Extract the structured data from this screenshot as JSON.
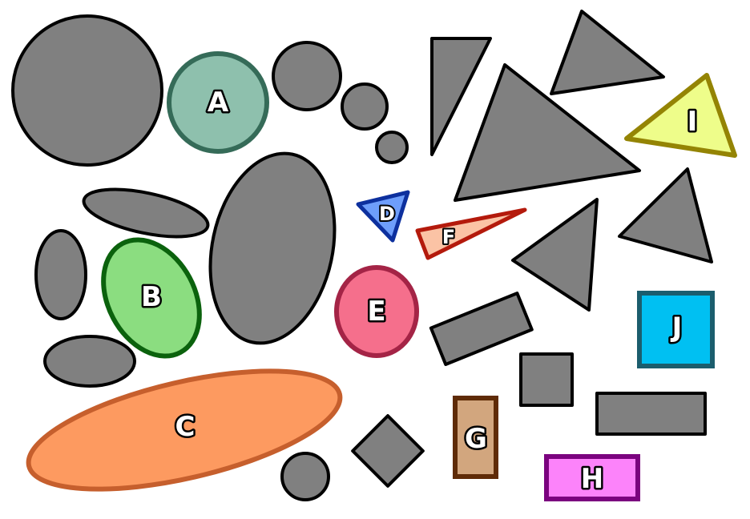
{
  "shape_labels": {
    "A": "A",
    "B": "B",
    "C": "C",
    "D": "D",
    "E": "E",
    "F": "F",
    "G": "G",
    "H": "H",
    "I": "I",
    "J": "J"
  },
  "colors": {
    "distractor_fill": "#808080",
    "distractor_stroke": "#000000",
    "A": {
      "fill": "#8ec0ad",
      "stroke": "#356b58"
    },
    "B": {
      "fill": "#8bdd80",
      "stroke": "#0b620d"
    },
    "C": {
      "fill": "#fd9a60",
      "stroke": "#c65f2d"
    },
    "D": {
      "fill": "#6e9efb",
      "stroke": "#0d309e"
    },
    "E": {
      "fill": "#f56f8c",
      "stroke": "#a42446"
    },
    "F": {
      "fill": "#fbc3a5",
      "stroke": "#b41a0c"
    },
    "G": {
      "fill": "#d2a67e",
      "stroke": "#5f2b07"
    },
    "H": {
      "fill": "#fc83fa",
      "stroke": "#7b037f"
    },
    "I": {
      "fill": "#eefd8a",
      "stroke": "#948404"
    },
    "J": {
      "fill": "#00c0f2",
      "stroke": "#1b5d6d"
    }
  }
}
